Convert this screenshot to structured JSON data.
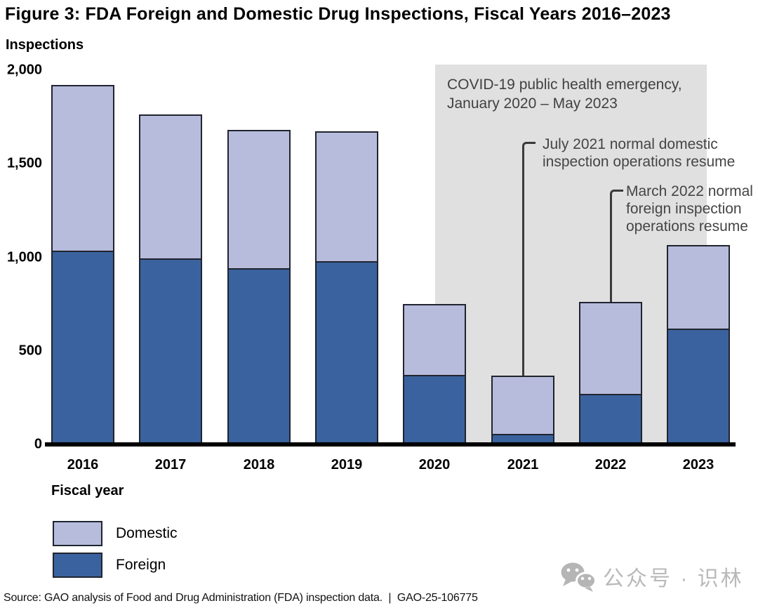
{
  "title": "Figure 3: FDA Foreign and Domestic Drug Inspections, Fiscal Years 2016–2023",
  "chart_data": {
    "type": "bar",
    "subtype": "stacked",
    "y_axis_label": "Inspections",
    "x_axis_label": "Fiscal year",
    "categories": [
      "2016",
      "2017",
      "2018",
      "2019",
      "2020",
      "2021",
      "2022",
      "2023"
    ],
    "series": [
      {
        "name": "Foreign",
        "color": "#3a629e",
        "values": [
          1035,
          995,
          940,
          980,
          370,
          55,
          270,
          620
        ]
      },
      {
        "name": "Domestic",
        "color": "#b7bcdc",
        "values": [
          885,
          770,
          740,
          695,
          380,
          310,
          490,
          445
        ]
      }
    ],
    "ylim": [
      0,
      2000
    ],
    "yticks": [
      {
        "value": 0,
        "label": "0"
      },
      {
        "value": 500,
        "label": "500"
      },
      {
        "value": 1000,
        "label": "1,000"
      },
      {
        "value": 1500,
        "label": "1,500"
      },
      {
        "value": 2000,
        "label": "2,000"
      }
    ],
    "grid": false,
    "legend_position": "bottom-left",
    "legend": [
      {
        "label": "Domestic",
        "series": "Domestic"
      },
      {
        "label": "Foreign",
        "series": "Foreign"
      }
    ],
    "covid_band": {
      "text": "COVID-19 public health emergency, January 2020 – May 2023",
      "fill": "#e0e0e0"
    },
    "annotations": [
      {
        "text": "July 2021 normal domestic inspection operations resume",
        "target_category": "2021"
      },
      {
        "text": "March 2022 normal foreign inspection operations resume",
        "target_category": "2022"
      }
    ]
  },
  "source_line": "Source: GAO analysis of Food and Drug Administration (FDA) inspection data.  |  GAO-25-106775",
  "watermark": {
    "icon": "wechat-icon",
    "text": "公众号 · 识林"
  }
}
